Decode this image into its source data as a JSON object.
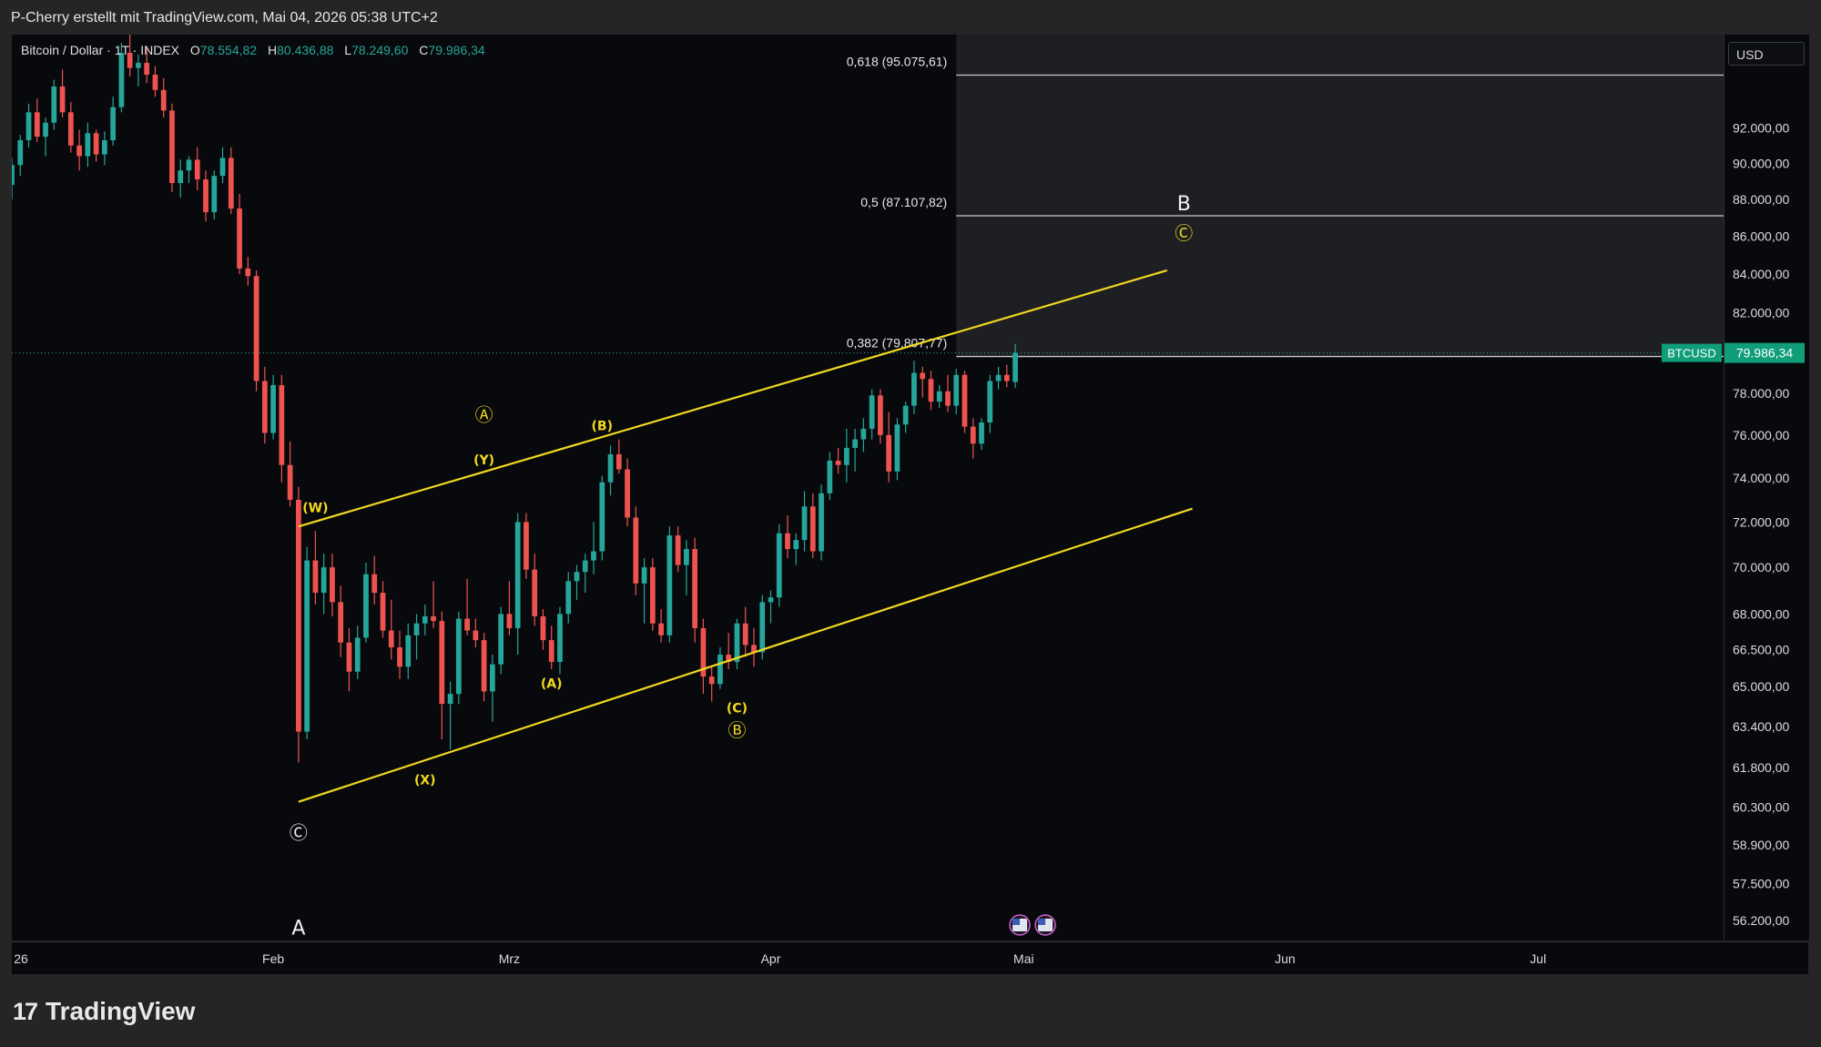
{
  "header": {
    "attribution": "P-Cherry erstellt mit TradingView.com, Mai 04, 2026 05:38 UTC+2"
  },
  "legend": {
    "symbol": "Bitcoin / Dollar · 1T · INDEX",
    "open_label": "O",
    "open": "78.554,82",
    "high_label": "H",
    "high": "80.436,88",
    "low_label": "L",
    "low": "78.249,60",
    "close_label": "C",
    "close": "79.986,34"
  },
  "currency": "USD",
  "price_tag": {
    "label": "BTCUSD",
    "value": "79.986,34"
  },
  "brand": "TradingView",
  "colors": {
    "up": "#26a69a",
    "down": "#ef5350",
    "channel": "#f2d820",
    "price_tag": "#0f9d7a",
    "fib_line": "#c9c9c9",
    "background": "#08090c"
  },
  "chart_data": {
    "type": "candlestick",
    "y_scale": "log",
    "ylim": [
      55500,
      97500
    ],
    "xlim": [
      "2026-01-01",
      "2026-07-23"
    ],
    "y_ticks": [
      92000,
      90000,
      88000,
      86000,
      84000,
      82000,
      78000,
      76000,
      74000,
      72000,
      70000,
      68000,
      66500,
      65000,
      63400,
      61800,
      60300,
      58900,
      57500,
      56200
    ],
    "y_tick_labels": [
      "92.000,00",
      "90.000,00",
      "88.000,00",
      "86.000,00",
      "84.000,00",
      "82.000,00",
      "78.000,00",
      "76.000,00",
      "74.000,00",
      "72.000,00",
      "70.000,00",
      "68.000,00",
      "66.500,00",
      "65.000,00",
      "63.400,00",
      "61.800,00",
      "60.300,00",
      "58.900,00",
      "57.500,00",
      "56.200,00"
    ],
    "x_ticks": [
      {
        "date": "2026-01-01",
        "label": "26"
      },
      {
        "date": "2026-02-01",
        "label": "Feb"
      },
      {
        "date": "2026-03-01",
        "label": "Mrz"
      },
      {
        "date": "2026-04-01",
        "label": "Apr"
      },
      {
        "date": "2026-05-01",
        "label": "Mai"
      },
      {
        "date": "2026-06-01",
        "label": "Jun"
      },
      {
        "date": "2026-07-01",
        "label": "Jul"
      }
    ],
    "candles_start": "2026-01-01",
    "candles": [
      [
        88800,
        90300,
        88000,
        89900
      ],
      [
        89900,
        91600,
        89300,
        91300
      ],
      [
        91300,
        93400,
        90900,
        92900
      ],
      [
        92900,
        93700,
        91200,
        91500
      ],
      [
        91500,
        92600,
        90400,
        92300
      ],
      [
        92300,
        94800,
        91900,
        94400
      ],
      [
        94400,
        95400,
        92600,
        92900
      ],
      [
        92900,
        93500,
        90600,
        91000
      ],
      [
        91000,
        91900,
        89600,
        90400
      ],
      [
        90400,
        92300,
        89800,
        91700
      ],
      [
        91700,
        91900,
        90100,
        90500
      ],
      [
        90500,
        91800,
        89900,
        91300
      ],
      [
        91300,
        93800,
        91000,
        93200
      ],
      [
        93200,
        97000,
        92900,
        96400
      ],
      [
        96400,
        97600,
        95000,
        95500
      ],
      [
        95500,
        96300,
        94400,
        95800
      ],
      [
        95800,
        96800,
        94600,
        95100
      ],
      [
        95100,
        95600,
        93800,
        94200
      ],
      [
        94200,
        94900,
        92600,
        93000
      ],
      [
        93000,
        93400,
        88400,
        88900
      ],
      [
        88900,
        90200,
        88100,
        89600
      ],
      [
        89600,
        90400,
        88900,
        90200
      ],
      [
        90200,
        90900,
        88500,
        89100
      ],
      [
        89100,
        89600,
        86800,
        87300
      ],
      [
        87300,
        89600,
        86900,
        89300
      ],
      [
        89300,
        90900,
        88900,
        90300
      ],
      [
        90300,
        90900,
        87200,
        87500
      ],
      [
        87500,
        88300,
        84000,
        84300
      ],
      [
        84300,
        84900,
        83400,
        83900
      ],
      [
        83900,
        84200,
        78100,
        78600
      ],
      [
        78600,
        79300,
        75600,
        76100
      ],
      [
        76100,
        78900,
        75800,
        78400
      ],
      [
        78400,
        78900,
        73800,
        74600
      ],
      [
        74600,
        75700,
        72700,
        73000
      ],
      [
        73000,
        73600,
        62000,
        63200
      ],
      [
        63200,
        70900,
        62900,
        70300
      ],
      [
        70300,
        71600,
        68400,
        68900
      ],
      [
        68900,
        70600,
        68000,
        70000
      ],
      [
        70000,
        70600,
        67900,
        68500
      ],
      [
        68500,
        69200,
        66200,
        66800
      ],
      [
        66800,
        67400,
        64800,
        65600
      ],
      [
        65600,
        67500,
        65300,
        67000
      ],
      [
        67000,
        70200,
        66800,
        69700
      ],
      [
        69700,
        70500,
        68400,
        68900
      ],
      [
        68900,
        69400,
        67000,
        67300
      ],
      [
        67300,
        68600,
        66100,
        66600
      ],
      [
        66600,
        67300,
        65300,
        65800
      ],
      [
        65800,
        67600,
        65300,
        67100
      ],
      [
        67100,
        68000,
        66100,
        67600
      ],
      [
        67600,
        68400,
        67100,
        67900
      ],
      [
        67900,
        69400,
        67400,
        67700
      ],
      [
        67700,
        68100,
        62900,
        64300
      ],
      [
        64300,
        65200,
        62500,
        64700
      ],
      [
        64700,
        68100,
        64300,
        67800
      ],
      [
        67800,
        69500,
        67100,
        67300
      ],
      [
        67300,
        67800,
        66600,
        66900
      ],
      [
        66900,
        67200,
        64400,
        64800
      ],
      [
        64800,
        66300,
        63600,
        65900
      ],
      [
        65900,
        68300,
        65500,
        68000
      ],
      [
        68000,
        69400,
        67100,
        67400
      ],
      [
        67400,
        72400,
        66300,
        72000
      ],
      [
        72000,
        72400,
        69500,
        69900
      ],
      [
        69900,
        70600,
        67500,
        67900
      ],
      [
        67900,
        68200,
        66500,
        66900
      ],
      [
        66900,
        67500,
        65700,
        66000
      ],
      [
        66000,
        68300,
        65500,
        68000
      ],
      [
        68000,
        69800,
        67600,
        69400
      ],
      [
        69400,
        70100,
        68600,
        69800
      ],
      [
        69800,
        70600,
        68900,
        70300
      ],
      [
        70300,
        72000,
        69700,
        70700
      ],
      [
        70700,
        74100,
        70300,
        73800
      ],
      [
        73800,
        75500,
        73200,
        75100
      ],
      [
        75100,
        75800,
        74200,
        74400
      ],
      [
        74400,
        74900,
        71800,
        72200
      ],
      [
        72200,
        72700,
        68800,
        69300
      ],
      [
        69300,
        70400,
        67600,
        70000
      ],
      [
        70000,
        70400,
        67300,
        67600
      ],
      [
        67600,
        68200,
        66800,
        67100
      ],
      [
        67100,
        71800,
        66800,
        71400
      ],
      [
        71400,
        71800,
        69800,
        70100
      ],
      [
        70100,
        71200,
        68800,
        70800
      ],
      [
        70800,
        71300,
        66800,
        67400
      ],
      [
        67400,
        67800,
        64700,
        65400
      ],
      [
        65400,
        65800,
        64400,
        65100
      ],
      [
        65100,
        66600,
        64900,
        66300
      ],
      [
        66300,
        67200,
        65700,
        66000
      ],
      [
        66000,
        67800,
        65700,
        67600
      ],
      [
        67600,
        68300,
        66200,
        66700
      ],
      [
        66700,
        67400,
        65800,
        66400
      ],
      [
        66400,
        68800,
        66100,
        68500
      ],
      [
        68500,
        69000,
        67600,
        68700
      ],
      [
        68700,
        71900,
        68300,
        71500
      ],
      [
        71500,
        72300,
        70400,
        70800
      ],
      [
        70800,
        71500,
        70100,
        71200
      ],
      [
        71200,
        73400,
        70700,
        72700
      ],
      [
        72700,
        73300,
        70400,
        70700
      ],
      [
        70700,
        73700,
        70300,
        73300
      ],
      [
        73300,
        75200,
        73000,
        74800
      ],
      [
        74800,
        75400,
        74200,
        74600
      ],
      [
        74600,
        76300,
        73800,
        75400
      ],
      [
        75400,
        76300,
        74300,
        75800
      ],
      [
        75800,
        76800,
        75200,
        76300
      ],
      [
        76300,
        78200,
        75800,
        77900
      ],
      [
        77900,
        78200,
        75600,
        76000
      ],
      [
        76000,
        77100,
        73800,
        74300
      ],
      [
        74300,
        76800,
        73900,
        76500
      ],
      [
        76500,
        77600,
        76100,
        77400
      ],
      [
        77400,
        79600,
        77000,
        79000
      ],
      [
        79000,
        79300,
        77800,
        78700
      ],
      [
        78700,
        79100,
        77200,
        77600
      ],
      [
        77600,
        78400,
        77300,
        78100
      ],
      [
        78100,
        78900,
        77100,
        77400
      ],
      [
        77400,
        79200,
        77000,
        78900
      ],
      [
        78900,
        79100,
        76100,
        76400
      ],
      [
        76400,
        76800,
        74900,
        75600
      ],
      [
        75600,
        76800,
        75300,
        76600
      ],
      [
        76600,
        78900,
        76100,
        78600
      ],
      [
        78600,
        79300,
        78200,
        78900
      ],
      [
        78900,
        79400,
        78300,
        78600
      ],
      [
        78554.82,
        80436.88,
        78249.6,
        79986.34
      ]
    ],
    "current_price": 79986.34,
    "fib_levels": [
      {
        "label": "0,618 (95.075,61)",
        "price": 95075.61
      },
      {
        "label": "0,5 (87.107,82)",
        "price": 87107.82
      },
      {
        "label": "0,382 (79.807,77)",
        "price": 79807.77
      }
    ],
    "fib_box": {
      "start": "2026-04-23"
    },
    "channel_lines": [
      {
        "start": [
          "2026-02-04",
          71800
        ],
        "end": [
          "2026-05-18",
          84200
        ]
      },
      {
        "start": [
          "2026-02-04",
          60500
        ],
        "end": [
          "2026-05-21",
          72600
        ]
      }
    ],
    "wave_labels": [
      {
        "text": "Ⓐ",
        "date": "2026-02-26",
        "price": 76900,
        "style": "yellow"
      },
      {
        "text": "(Y)",
        "date": "2026-02-26",
        "price": 74800,
        "style": "yellow"
      },
      {
        "text": "(B)",
        "date": "2026-03-12",
        "price": 76400,
        "style": "yellow"
      },
      {
        "text": "(W)",
        "date": "2026-02-06",
        "price": 72600,
        "style": "yellow"
      },
      {
        "text": "(A)",
        "date": "2026-03-06",
        "price": 65100,
        "style": "yellow"
      },
      {
        "text": "(X)",
        "date": "2026-02-19",
        "price": 61300,
        "style": "yellow"
      },
      {
        "text": "(C)",
        "date": "2026-03-28",
        "price": 64100,
        "style": "yellow"
      },
      {
        "text": "Ⓑ",
        "date": "2026-03-28",
        "price": 63200,
        "style": "yellow"
      },
      {
        "text": "Ⓒ",
        "date": "2026-02-04",
        "price": 59300,
        "style": "white"
      },
      {
        "text": "A",
        "date": "2026-02-04",
        "price": 55900,
        "style": "white-large"
      },
      {
        "text": "B",
        "date": "2026-05-20",
        "price": 87700,
        "style": "white-large"
      },
      {
        "text": "Ⓒ",
        "date": "2026-05-20",
        "price": 86100,
        "style": "yellow"
      }
    ]
  }
}
